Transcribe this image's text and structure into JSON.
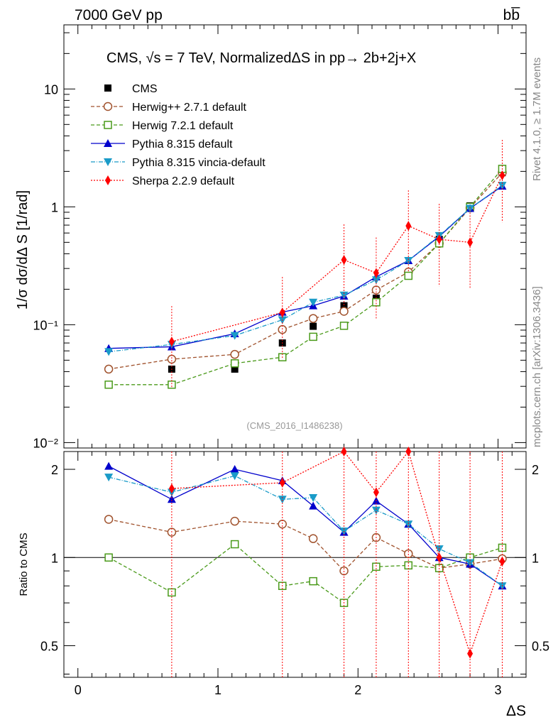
{
  "header": {
    "left_label": "7000 GeV pp",
    "right_label": "bb̅"
  },
  "side_labels": {
    "rivet": "Rivet 4.1.0, ≥ 1.7M events",
    "mcplots": "mcplots.cern.ch [arXiv:1306.3436]"
  },
  "chart_data": {
    "type": "line",
    "title": "CMS, √s = 7 TeV, NormalizedΔS in pp→  2b+2j+X",
    "analysis_tag": "(CMS_2016_I1486238)",
    "xlabel": "ΔS",
    "ylabel": "1/σ dσ/dΔ S [1/rad]",
    "ratio_ylabel": "Ratio to CMS",
    "xlim": [
      -0.1,
      3.2
    ],
    "ylim": [
      0.009,
      35
    ],
    "ratio_ylim": [
      0.39,
      2.3
    ],
    "x": [
      0.22,
      0.67,
      1.12,
      1.46,
      1.68,
      1.9,
      2.13,
      2.36,
      2.58,
      2.8,
      3.03
    ],
    "x_ticks": [
      "0",
      "1",
      "2",
      "3"
    ],
    "y_ticks": [
      "10⁻²",
      "10⁻¹",
      "1",
      "10"
    ],
    "ratio_ticks": [
      "0.5",
      "1",
      "2"
    ],
    "series": [
      {
        "name": "CMS",
        "color": "#000000",
        "marker": "square-filled",
        "dash": "none",
        "values": [
          0.031,
          0.042,
          0.042,
          0.07,
          0.097,
          0.145,
          0.168,
          0.27,
          0.53,
          1.02,
          1.95
        ]
      },
      {
        "name": "Herwig++ 2.7.1 default",
        "color": "#a0522d",
        "marker": "circle-open",
        "dash": "5,3",
        "values": [
          0.042,
          0.051,
          0.056,
          0.091,
          0.113,
          0.13,
          0.197,
          0.28,
          0.49,
          0.98,
          1.95
        ],
        "ratio": [
          1.35,
          1.22,
          1.33,
          1.3,
          1.16,
          0.9,
          1.17,
          1.03,
          0.92,
          0.95,
          0.99
        ]
      },
      {
        "name": "Herwig 7.2.1 default",
        "color": "#4a9a1a",
        "marker": "square-open",
        "dash": "5,3",
        "values": [
          0.031,
          0.031,
          0.047,
          0.053,
          0.079,
          0.098,
          0.155,
          0.26,
          0.49,
          1.0,
          2.1
        ],
        "ratio": [
          1.0,
          0.76,
          1.11,
          0.8,
          0.83,
          0.7,
          0.93,
          0.94,
          0.92,
          1.0,
          1.08
        ]
      },
      {
        "name": "Pythia 8.315 default",
        "color": "#0000cc",
        "marker": "triangle-up",
        "dash": "none",
        "values": [
          0.063,
          0.065,
          0.084,
          0.128,
          0.145,
          0.175,
          0.255,
          0.35,
          0.56,
          0.97,
          1.5
        ],
        "ratio": [
          2.05,
          1.58,
          2.0,
          1.83,
          1.5,
          1.22,
          1.56,
          1.3,
          1.0,
          0.95,
          0.8
        ]
      },
      {
        "name": "Pythia 8.315 vincia-default",
        "color": "#1a9bc8",
        "marker": "triangle-down",
        "dash": "6,2,1,2",
        "values": [
          0.059,
          0.068,
          0.081,
          0.11,
          0.155,
          0.178,
          0.24,
          0.35,
          0.57,
          0.97,
          1.52
        ],
        "ratio": [
          1.88,
          1.67,
          1.9,
          1.58,
          1.6,
          1.23,
          1.45,
          1.3,
          1.07,
          0.96,
          0.8
        ]
      },
      {
        "name": "Sherpa 2.2.9 default",
        "color": "#ff0000",
        "marker": "diamond",
        "dash": "2,2",
        "values": [
          null,
          0.072,
          null,
          0.127,
          null,
          0.355,
          0.275,
          0.69,
          0.53,
          0.5,
          1.85
        ],
        "ratio": [
          null,
          1.72,
          null,
          1.8,
          null,
          2.3,
          1.67,
          2.3,
          1.0,
          0.47,
          0.97
        ]
      }
    ]
  }
}
